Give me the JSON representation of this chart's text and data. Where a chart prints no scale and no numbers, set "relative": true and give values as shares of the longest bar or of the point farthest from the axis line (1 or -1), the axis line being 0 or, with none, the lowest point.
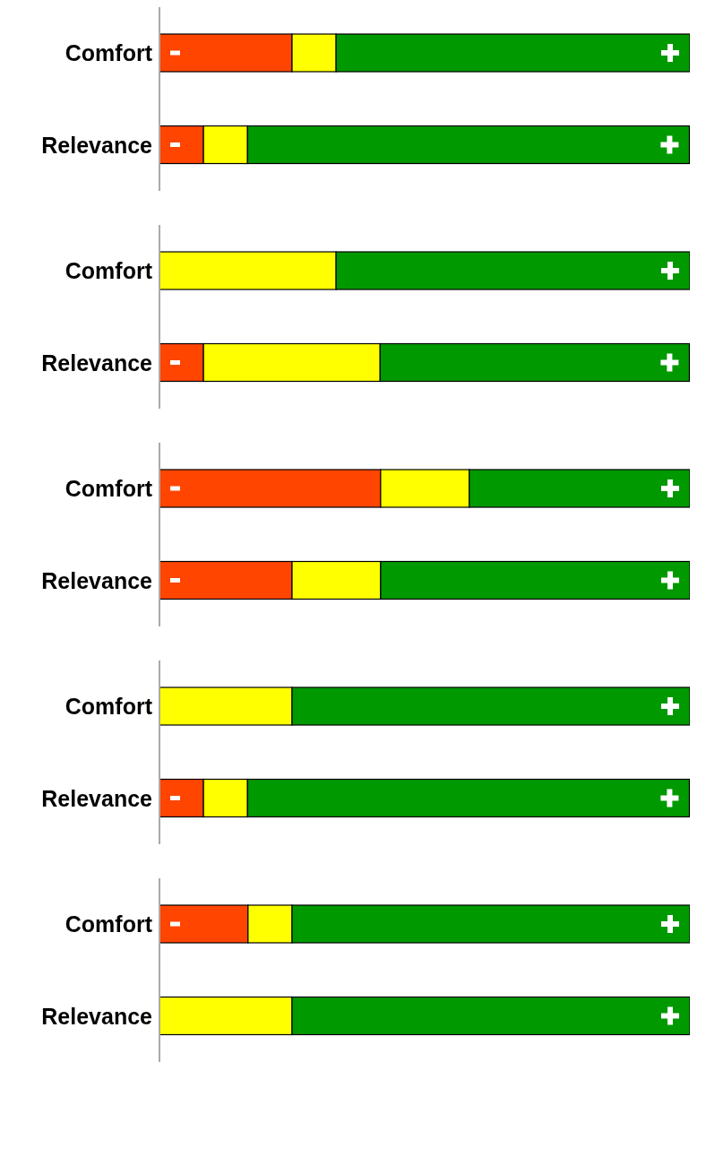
{
  "chart_data": [
    {
      "type": "bar",
      "orientation": "horizontal",
      "stacked": true,
      "relative": true,
      "categories": [
        "Comfort",
        "Relevance"
      ],
      "series": [
        {
          "color": "#ff4500",
          "values": [
            0.25,
            0.083
          ]
        },
        {
          "color": "#ffff00",
          "values": [
            0.083,
            0.083
          ]
        },
        {
          "color": "#009900",
          "values": [
            0.667,
            0.833
          ]
        }
      ]
    },
    {
      "type": "bar",
      "orientation": "horizontal",
      "stacked": true,
      "relative": true,
      "categories": [
        "Comfort",
        "Relevance"
      ],
      "series": [
        {
          "color": "#ff4500",
          "values": [
            0,
            0.083
          ]
        },
        {
          "color": "#ffff00",
          "values": [
            0.333,
            0.333
          ]
        },
        {
          "color": "#009900",
          "values": [
            0.667,
            0.583
          ]
        }
      ]
    },
    {
      "type": "bar",
      "orientation": "horizontal",
      "stacked": true,
      "relative": true,
      "categories": [
        "Comfort",
        "Relevance"
      ],
      "series": [
        {
          "color": "#ff4500",
          "values": [
            0.417,
            0.25
          ]
        },
        {
          "color": "#ffff00",
          "values": [
            0.167,
            0.167
          ]
        },
        {
          "color": "#009900",
          "values": [
            0.416,
            0.583
          ]
        }
      ]
    },
    {
      "type": "bar",
      "orientation": "horizontal",
      "stacked": true,
      "relative": true,
      "categories": [
        "Comfort",
        "Relevance"
      ],
      "series": [
        {
          "color": "#ff4500",
          "values": [
            0,
            0.083
          ]
        },
        {
          "color": "#ffff00",
          "values": [
            0.25,
            0.083
          ]
        },
        {
          "color": "#009900",
          "values": [
            0.75,
            0.833
          ]
        }
      ]
    },
    {
      "type": "bar",
      "orientation": "horizontal",
      "stacked": true,
      "relative": true,
      "categories": [
        "Comfort",
        "Relevance"
      ],
      "series": [
        {
          "color": "#ff4500",
          "values": [
            0.167,
            0
          ]
        },
        {
          "color": "#ffff00",
          "values": [
            0.083,
            0.25
          ]
        },
        {
          "color": "#009900",
          "values": [
            0.75,
            0.75
          ]
        }
      ]
    }
  ]
}
